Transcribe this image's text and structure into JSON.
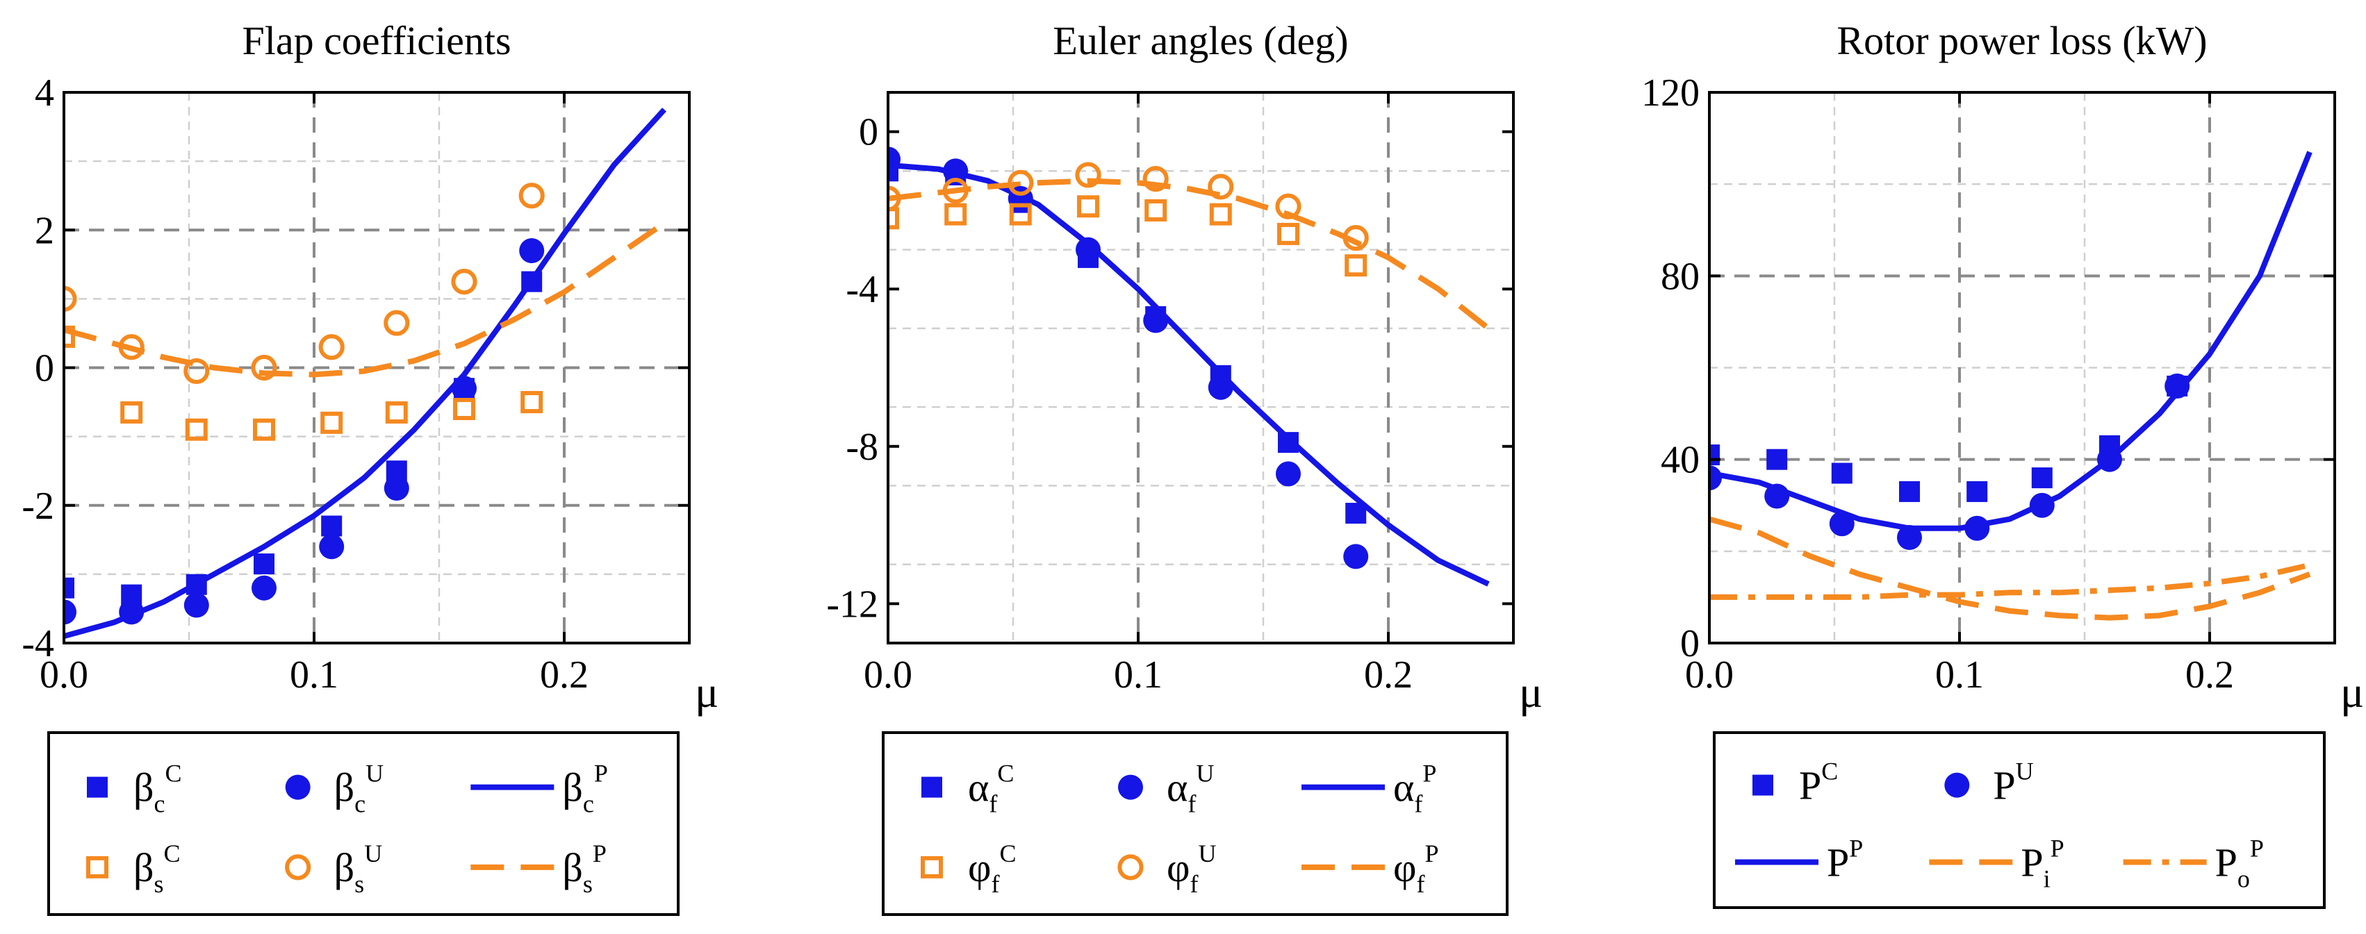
{
  "chart_data": [
    {
      "type": "line",
      "title": "Flap coefficients",
      "xlabel": "μ",
      "ylabel": "",
      "xlim": [
        0,
        0.25
      ],
      "ylim": [
        -4,
        4
      ],
      "xticks": [
        "0.0",
        "0.1",
        "0.2"
      ],
      "yticks": [
        "4",
        "2",
        "0",
        "-2",
        "-4"
      ],
      "grid": true,
      "series": [
        {
          "name": "βcC",
          "kind": "marker-square-filled",
          "color": "#1515e6",
          "x": [
            0.0,
            0.027,
            0.053,
            0.08,
            0.107,
            0.133,
            0.16,
            0.187
          ],
          "y": [
            -3.2,
            -3.3,
            -3.15,
            -2.85,
            -2.3,
            -1.5,
            -0.3,
            1.25
          ]
        },
        {
          "name": "βcU",
          "kind": "marker-circle-filled",
          "color": "#1515e6",
          "x": [
            0.0,
            0.027,
            0.053,
            0.08,
            0.107,
            0.133,
            0.16,
            0.187
          ],
          "y": [
            -3.55,
            -3.55,
            -3.45,
            -3.2,
            -2.6,
            -1.75,
            -0.3,
            1.7
          ]
        },
        {
          "name": "βcP",
          "kind": "line-solid",
          "color": "#1515e6",
          "x": [
            0.0,
            0.02,
            0.04,
            0.06,
            0.08,
            0.1,
            0.12,
            0.14,
            0.16,
            0.18,
            0.2,
            0.22,
            0.24
          ],
          "y": [
            -3.9,
            -3.7,
            -3.4,
            -3.0,
            -2.6,
            -2.15,
            -1.6,
            -0.9,
            -0.1,
            0.9,
            1.95,
            2.95,
            3.75
          ]
        },
        {
          "name": "βsC",
          "kind": "marker-square-open",
          "color": "#f5891f",
          "x": [
            0.0,
            0.027,
            0.053,
            0.08,
            0.107,
            0.133,
            0.16,
            0.187
          ],
          "y": [
            0.45,
            -0.65,
            -0.9,
            -0.9,
            -0.8,
            -0.65,
            -0.6,
            -0.5
          ]
        },
        {
          "name": "βsU",
          "kind": "marker-circle-open",
          "color": "#f5891f",
          "x": [
            0.0,
            0.027,
            0.053,
            0.08,
            0.107,
            0.133,
            0.16,
            0.187
          ],
          "y": [
            1.0,
            0.3,
            -0.05,
            0.0,
            0.3,
            0.65,
            1.25,
            2.5
          ]
        },
        {
          "name": "βsP",
          "kind": "line-dashed",
          "color": "#f5891f",
          "x": [
            0.0,
            0.02,
            0.04,
            0.06,
            0.08,
            0.1,
            0.12,
            0.14,
            0.16,
            0.18,
            0.2,
            0.22,
            0.24
          ],
          "y": [
            0.55,
            0.35,
            0.15,
            0.0,
            -0.08,
            -0.1,
            -0.05,
            0.1,
            0.35,
            0.7,
            1.1,
            1.6,
            2.1
          ]
        }
      ],
      "legend": {
        "rows": [
          [
            {
              "sym": "βc",
              "sup": "C"
            },
            {
              "sym": "βc",
              "sup": "U"
            },
            {
              "sym": "βc",
              "sup": "P"
            }
          ],
          [
            {
              "sym": "βs",
              "sup": "C"
            },
            {
              "sym": "βs",
              "sup": "U"
            },
            {
              "sym": "βs",
              "sup": "P"
            }
          ]
        ]
      }
    },
    {
      "type": "line",
      "title": "Euler angles (deg)",
      "xlabel": "μ",
      "ylabel": "",
      "xlim": [
        0,
        0.25
      ],
      "ylim": [
        -13,
        1
      ],
      "xticks": [
        "0.0",
        "0.1",
        "0.2"
      ],
      "yticks": [
        "0",
        "-4",
        "-8",
        "-12"
      ],
      "grid": true,
      "series": [
        {
          "name": "αfC",
          "kind": "marker-square-filled",
          "color": "#1515e6",
          "x": [
            0.0,
            0.027,
            0.053,
            0.08,
            0.107,
            0.133,
            0.16,
            0.187
          ],
          "y": [
            -1.0,
            -1.1,
            -1.8,
            -3.2,
            -4.7,
            -6.2,
            -7.9,
            -9.7
          ]
        },
        {
          "name": "αfU",
          "kind": "marker-circle-filled",
          "color": "#1515e6",
          "x": [
            0.0,
            0.027,
            0.053,
            0.08,
            0.107,
            0.133,
            0.16,
            0.187
          ],
          "y": [
            -0.7,
            -1.0,
            -1.7,
            -3.0,
            -4.8,
            -6.5,
            -8.7,
            -10.8
          ]
        },
        {
          "name": "αfP",
          "kind": "line-solid",
          "color": "#1515e6",
          "x": [
            0.0,
            0.02,
            0.04,
            0.06,
            0.08,
            0.1,
            0.12,
            0.14,
            0.16,
            0.18,
            0.2,
            0.22,
            0.24
          ],
          "y": [
            -0.85,
            -0.95,
            -1.25,
            -1.85,
            -2.85,
            -4.0,
            -5.3,
            -6.6,
            -7.8,
            -8.95,
            -10.0,
            -10.9,
            -11.5
          ]
        },
        {
          "name": "φfC",
          "kind": "marker-square-open",
          "color": "#f5891f",
          "x": [
            0.0,
            0.027,
            0.053,
            0.08,
            0.107,
            0.133,
            0.16,
            0.187
          ],
          "y": [
            -2.2,
            -2.1,
            -2.1,
            -1.9,
            -2.0,
            -2.1,
            -2.6,
            -3.4
          ]
        },
        {
          "name": "φfU",
          "kind": "marker-circle-open",
          "color": "#f5891f",
          "x": [
            0.0,
            0.027,
            0.053,
            0.08,
            0.107,
            0.133,
            0.16,
            0.187
          ],
          "y": [
            -1.7,
            -1.5,
            -1.3,
            -1.1,
            -1.2,
            -1.4,
            -1.9,
            -2.7
          ]
        },
        {
          "name": "φfP",
          "kind": "line-dashed",
          "color": "#f5891f",
          "x": [
            0.0,
            0.02,
            0.04,
            0.06,
            0.08,
            0.1,
            0.12,
            0.14,
            0.16,
            0.18,
            0.2,
            0.22,
            0.24
          ],
          "y": [
            -1.7,
            -1.55,
            -1.4,
            -1.3,
            -1.25,
            -1.3,
            -1.45,
            -1.7,
            -2.1,
            -2.6,
            -3.2,
            -4.0,
            -5.0
          ]
        }
      ],
      "legend": {
        "rows": [
          [
            {
              "sym": "αf",
              "sup": "C"
            },
            {
              "sym": "αf",
              "sup": "U"
            },
            {
              "sym": "αf",
              "sup": "P"
            }
          ],
          [
            {
              "sym": "φf",
              "sup": "C"
            },
            {
              "sym": "φf",
              "sup": "U"
            },
            {
              "sym": "φf",
              "sup": "P"
            }
          ]
        ]
      }
    },
    {
      "type": "line",
      "title": "Rotor power loss (kW)",
      "xlabel": "μ",
      "ylabel": "",
      "xlim": [
        0,
        0.25
      ],
      "ylim": [
        0,
        120
      ],
      "xticks": [
        "0.0",
        "0.1",
        "0.2"
      ],
      "yticks": [
        "120",
        "80",
        "40",
        "0"
      ],
      "grid": true,
      "series": [
        {
          "name": "PC",
          "kind": "marker-square-filled",
          "color": "#1515e6",
          "x": [
            0.0,
            0.027,
            0.053,
            0.08,
            0.107,
            0.133,
            0.16,
            0.187
          ],
          "y": [
            41,
            40,
            37,
            33,
            33,
            36,
            43,
            56
          ]
        },
        {
          "name": "PU",
          "kind": "marker-circle-filled",
          "color": "#1515e6",
          "x": [
            0.0,
            0.027,
            0.053,
            0.08,
            0.107,
            0.133,
            0.16,
            0.187
          ],
          "y": [
            36,
            32,
            26,
            23,
            25,
            30,
            40,
            56
          ]
        },
        {
          "name": "PP",
          "kind": "line-solid",
          "color": "#1515e6",
          "x": [
            0.0,
            0.02,
            0.04,
            0.06,
            0.08,
            0.1,
            0.12,
            0.14,
            0.16,
            0.18,
            0.2,
            0.22,
            0.24
          ],
          "y": [
            37,
            35,
            31,
            27,
            25,
            25,
            27,
            32,
            40,
            50,
            63,
            80,
            107
          ]
        },
        {
          "name": "PiP",
          "kind": "line-dashed",
          "color": "#f5891f",
          "x": [
            0.0,
            0.02,
            0.04,
            0.06,
            0.08,
            0.1,
            0.12,
            0.14,
            0.16,
            0.18,
            0.2,
            0.22,
            0.24
          ],
          "y": [
            27,
            24,
            19,
            15,
            12,
            9,
            7,
            6,
            5.5,
            6,
            8,
            11,
            15
          ]
        },
        {
          "name": "PoP",
          "kind": "line-dashdot",
          "color": "#f5891f",
          "x": [
            0.0,
            0.02,
            0.04,
            0.06,
            0.08,
            0.1,
            0.12,
            0.14,
            0.16,
            0.18,
            0.2,
            0.22,
            0.24
          ],
          "y": [
            10,
            10,
            10,
            10,
            10.5,
            10.5,
            11,
            11,
            11.5,
            12,
            13,
            14.5,
            17
          ]
        }
      ],
      "legend": {
        "rows": [
          [
            {
              "sym": "P",
              "sup": "C"
            },
            {
              "sym": "P",
              "sup": "U"
            }
          ],
          [
            {
              "sym": "P",
              "sup": "P"
            },
            {
              "sym": "Pi",
              "sup": "P"
            },
            {
              "sym": "Po",
              "sup": "P"
            }
          ]
        ]
      }
    }
  ]
}
